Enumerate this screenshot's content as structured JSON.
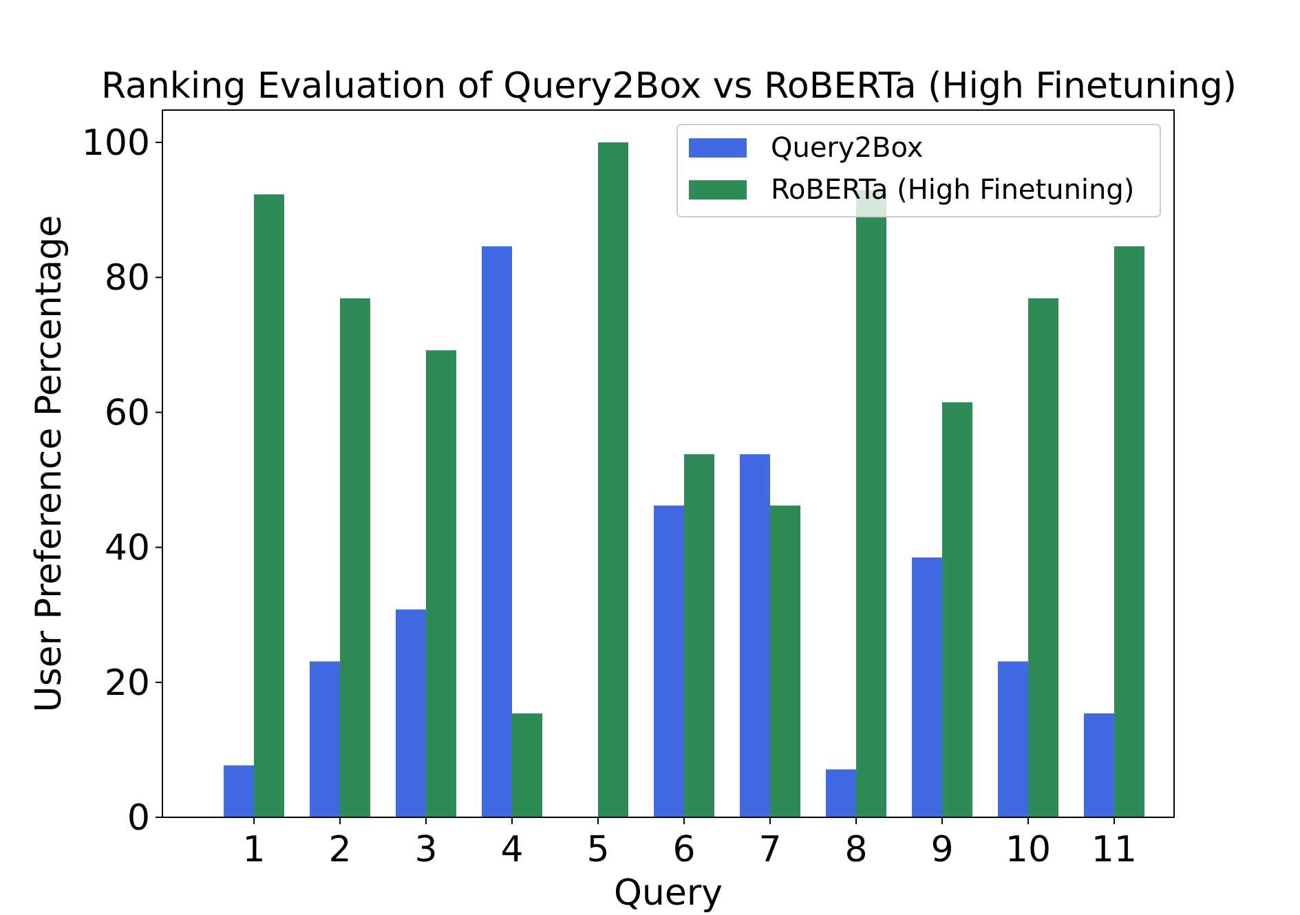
{
  "chart_data": {
    "type": "bar",
    "title": "Ranking Evaluation of Query2Box vs RoBERTa (High Finetuning)",
    "xlabel": "Query",
    "ylabel": "User Preference Percentage",
    "categories": [
      "1",
      "2",
      "3",
      "4",
      "5",
      "6",
      "7",
      "8",
      "9",
      "10",
      "11"
    ],
    "series": [
      {
        "name": "Query2Box",
        "color": "#4169e1",
        "values": [
          7.7,
          23.1,
          30.8,
          84.6,
          0,
          46.2,
          53.8,
          7.1,
          38.5,
          23.1,
          15.4
        ]
      },
      {
        "name": "RoBERTa (High Finetuning)",
        "color": "#2e8b57",
        "values": [
          92.3,
          76.9,
          69.2,
          15.4,
          100,
          53.8,
          46.2,
          92.9,
          61.5,
          76.9,
          84.6
        ]
      }
    ],
    "ylim": [
      0,
      105
    ],
    "yticks": [
      0,
      20,
      40,
      60,
      80,
      100
    ],
    "legend_position": "top-right",
    "grid": false
  }
}
